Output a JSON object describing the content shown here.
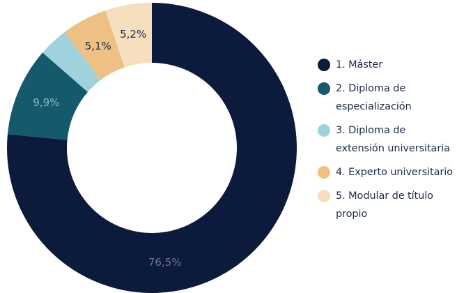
{
  "chart_data": {
    "type": "pie",
    "variant": "donut",
    "title": "",
    "legend_position": "right",
    "slices": [
      {
        "label": "1. Máster",
        "value": 76.5,
        "value_label": "76,5%",
        "color": "#0c1a3c",
        "label_color": "#6b7592"
      },
      {
        "label": "2. Diploma de especialización",
        "value": 9.9,
        "value_label": "9,9%",
        "color": "#14596c",
        "label_color": "#8fb8c3"
      },
      {
        "label": "3. Diploma de extensión universitaria",
        "value": 3.3,
        "value_label": "",
        "color": "#9fd2dc",
        "label_color": "#1d2a4a"
      },
      {
        "label": "4. Experto universitario",
        "value": 5.1,
        "value_label": "5,1%",
        "color": "#eec083",
        "label_color": "#1d2a4a"
      },
      {
        "label": "5. Modular de título propio",
        "value": 5.2,
        "value_label": "5,2%",
        "color": "#f6dfbf",
        "label_color": "#1d2a4a"
      }
    ]
  }
}
